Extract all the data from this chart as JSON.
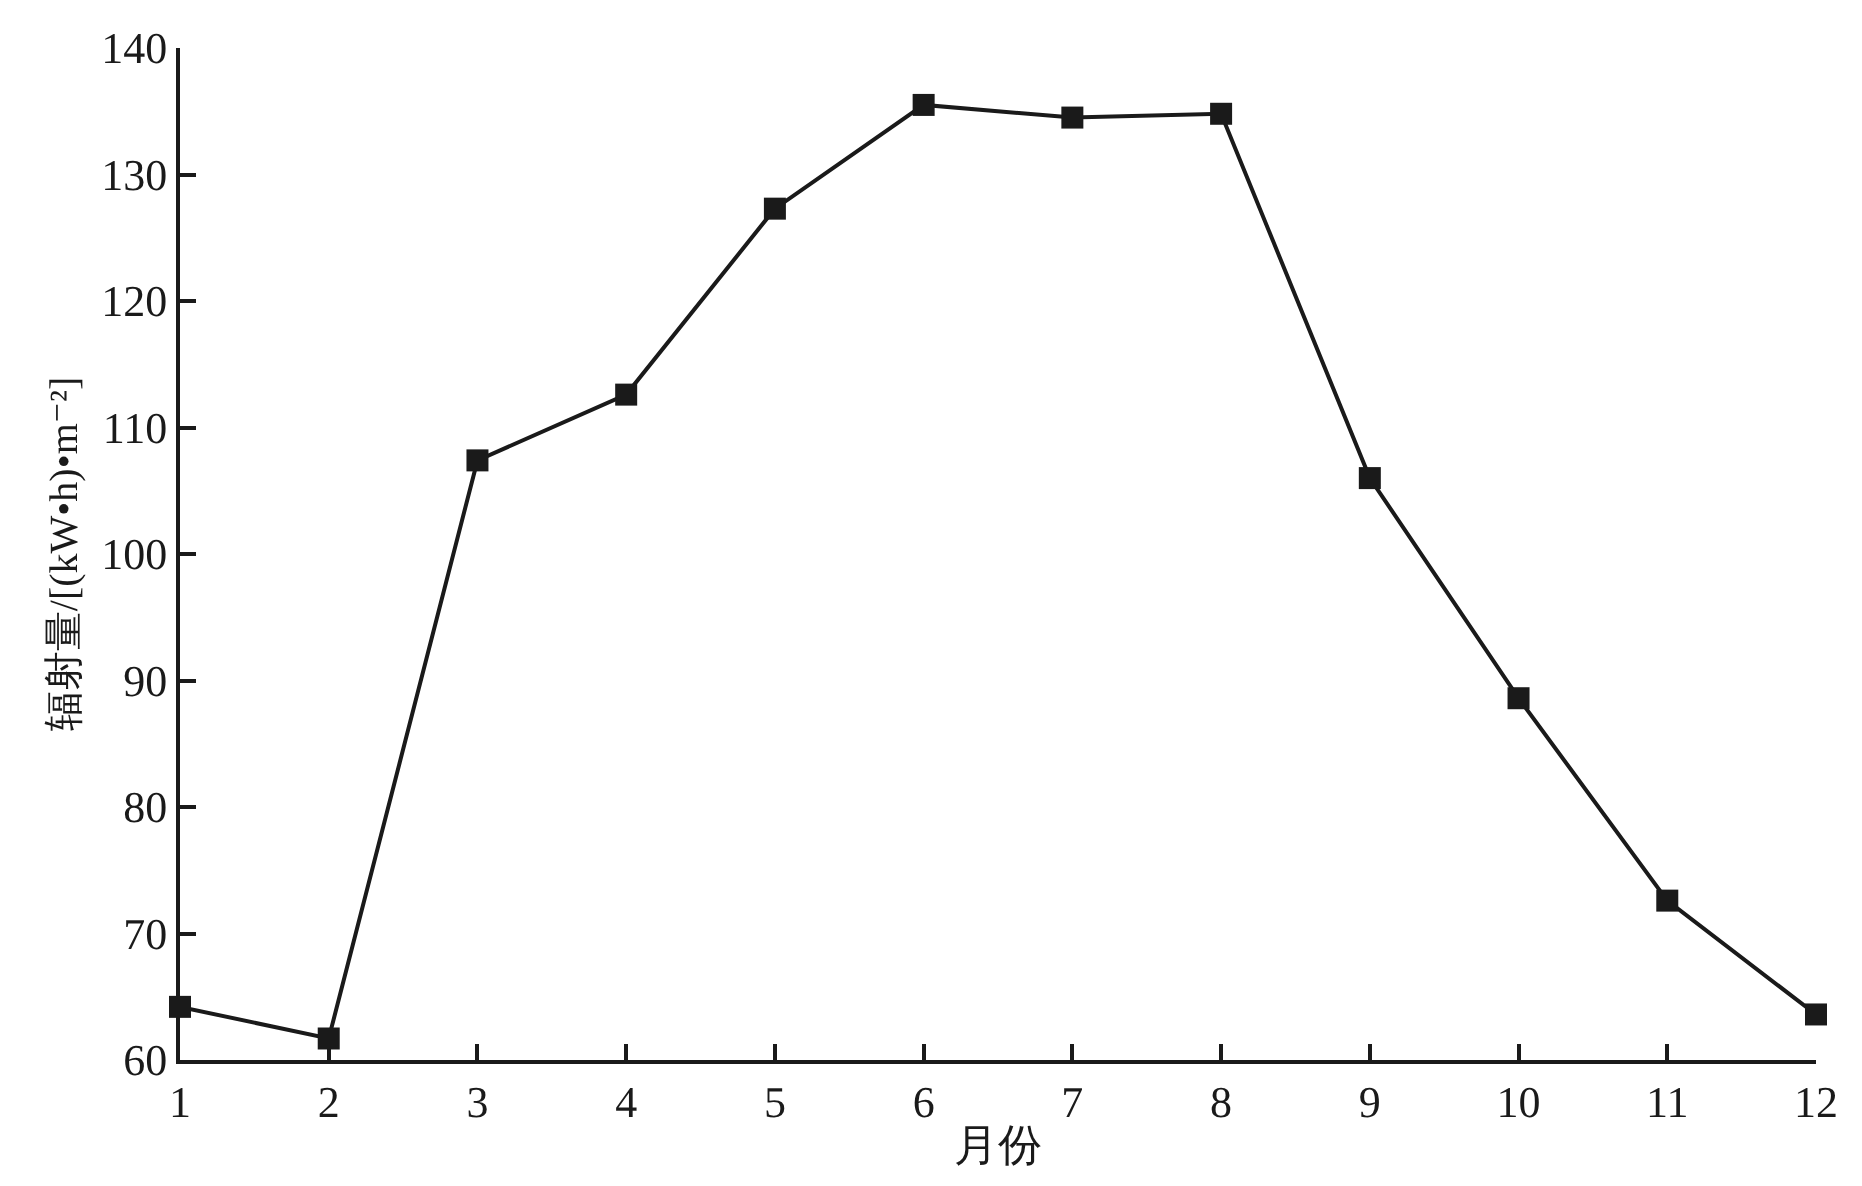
{
  "chart_data": {
    "type": "line",
    "xlabel": "月份",
    "ylabel": "辐射量/[(kW•h)•m⁻²]",
    "x": [
      1,
      2,
      3,
      4,
      5,
      6,
      7,
      8,
      9,
      10,
      11,
      12
    ],
    "series": [
      {
        "color": "#1a1a1a",
        "values": [
          64.2,
          61.7,
          107.4,
          112.6,
          127.3,
          135.5,
          134.5,
          134.8,
          106.0,
          88.6,
          72.6,
          63.6
        ]
      }
    ],
    "xlim": [
      1,
      12
    ],
    "xticks": [
      1,
      2,
      3,
      4,
      5,
      6,
      7,
      8,
      9,
      10,
      11,
      12
    ],
    "ylim": [
      60,
      140
    ],
    "yticks": [
      60,
      70,
      80,
      90,
      100,
      110,
      120,
      130,
      140
    ],
    "marker": "square",
    "line_style": "solid"
  }
}
